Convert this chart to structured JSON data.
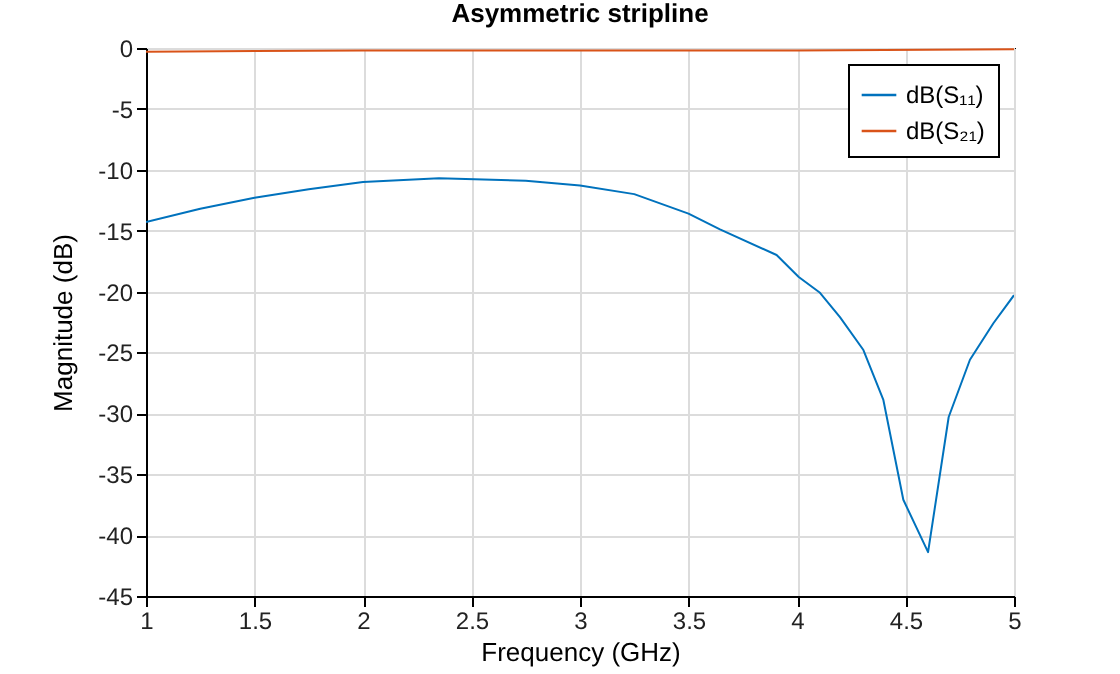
{
  "chart_data": {
    "type": "line",
    "title": "Asymmetric stripline",
    "xlabel": "Frequency (GHz)",
    "ylabel": "Magnitude (dB)",
    "xlim": [
      1,
      5
    ],
    "xticks": [
      1,
      1.5,
      2,
      2.5,
      3,
      3.5,
      4,
      4.5,
      5
    ],
    "ylim": [
      -45,
      0
    ],
    "yticks": [
      -45,
      -40,
      -35,
      -30,
      -25,
      -20,
      -15,
      -10,
      -5,
      0
    ],
    "grid": true,
    "legend": "top right",
    "marker": "none",
    "line_style": "solid",
    "series": [
      {
        "name": "dB(S₁₁)",
        "color": "#0072bd",
        "x": [
          1,
          1.25,
          1.5,
          1.75,
          2,
          2.35,
          2.75,
          3,
          3.25,
          3.5,
          3.645,
          3.906,
          4.008,
          4.106,
          4.198,
          4.306,
          4.398,
          4.49,
          4.604,
          4.699,
          4.797,
          4.905,
          5
        ],
        "values": [
          -14.3,
          -13.2,
          -12.3,
          -11.6,
          -11.0,
          -10.7,
          -10.9,
          -11.3,
          -12.0,
          -13.6,
          -14.9,
          -17.0,
          -18.8,
          -20.1,
          -22.1,
          -24.8,
          -28.9,
          -37.1,
          -41.4,
          -30.3,
          -25.6,
          -22.6,
          -20.3
        ]
      },
      {
        "name": "dB(S₂₁)",
        "color": "#d95319",
        "x": [
          1,
          2,
          3,
          4,
          5
        ],
        "values": [
          -0.3,
          -0.2,
          -0.2,
          -0.2,
          -0.1
        ]
      }
    ]
  }
}
